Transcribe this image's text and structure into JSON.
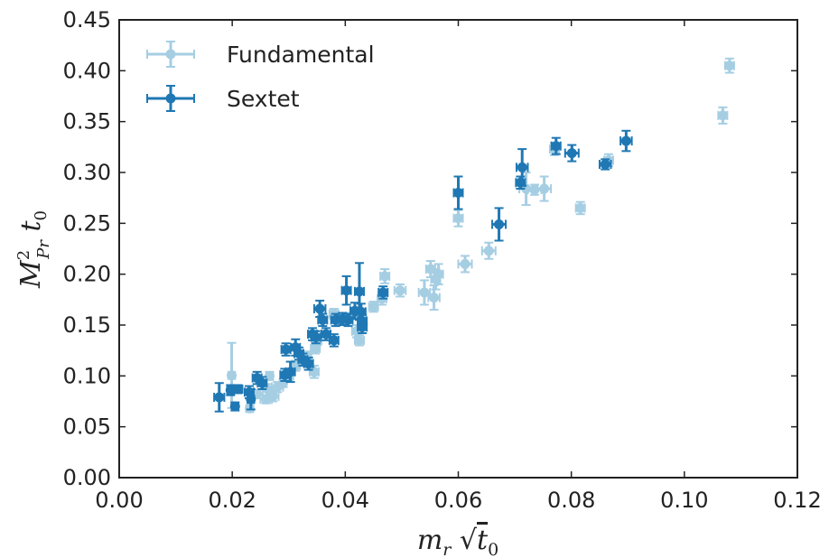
{
  "chart_data": {
    "type": "scatter",
    "title": "",
    "xlabel": "m_r √t_0",
    "ylabel": "M²_Pr t_0",
    "xlim": [
      0.0,
      0.12
    ],
    "ylim": [
      0.0,
      0.45
    ],
    "x_ticks": [
      "0.00",
      "0.02",
      "0.04",
      "0.06",
      "0.08",
      "0.10",
      "0.12"
    ],
    "y_ticks": [
      "0.00",
      "0.05",
      "0.10",
      "0.15",
      "0.20",
      "0.25",
      "0.30",
      "0.35",
      "0.40",
      "0.45"
    ],
    "grid": false,
    "legend_position": "top-left",
    "series": [
      {
        "name": "Fundamental",
        "color": "#a6cee3",
        "points": [
          {
            "x": 0.0199,
            "y": 0.1005,
            "xerr": 0.0006,
            "yerr": 0.032
          },
          {
            "x": 0.0231,
            "y": 0.068,
            "xerr": 0.0006,
            "yerr": 0.003
          },
          {
            "x": 0.0244,
            "y": 0.082,
            "xerr": 0.001,
            "yerr": 0.004
          },
          {
            "x": 0.026,
            "y": 0.077,
            "xerr": 0.001,
            "yerr": 0.004
          },
          {
            "x": 0.0264,
            "y": 0.086,
            "xerr": 0.001,
            "yerr": 0.006
          },
          {
            "x": 0.0272,
            "y": 0.08,
            "xerr": 0.001,
            "yerr": 0.005
          },
          {
            "x": 0.0266,
            "y": 0.1,
            "xerr": 0.0006,
            "yerr": 0.004
          },
          {
            "x": 0.028,
            "y": 0.089,
            "xerr": 0.001,
            "yerr": 0.005
          },
          {
            "x": 0.029,
            "y": 0.093,
            "xerr": 0.0006,
            "yerr": 0.004
          },
          {
            "x": 0.03,
            "y": 0.1,
            "xerr": 0.0008,
            "yerr": 0.005
          },
          {
            "x": 0.0312,
            "y": 0.11,
            "xerr": 0.0008,
            "yerr": 0.005
          },
          {
            "x": 0.0332,
            "y": 0.119,
            "xerr": 0.0008,
            "yerr": 0.005
          },
          {
            "x": 0.0345,
            "y": 0.104,
            "xerr": 0.0008,
            "yerr": 0.006
          },
          {
            "x": 0.0347,
            "y": 0.127,
            "xerr": 0.0008,
            "yerr": 0.005
          },
          {
            "x": 0.035,
            "y": 0.135,
            "xerr": 0.0008,
            "yerr": 0.005
          },
          {
            "x": 0.038,
            "y": 0.161,
            "xerr": 0.0008,
            "yerr": 0.005
          },
          {
            "x": 0.0404,
            "y": 0.157,
            "xerr": 0.0008,
            "yerr": 0.005
          },
          {
            "x": 0.042,
            "y": 0.144,
            "xerr": 0.0008,
            "yerr": 0.006
          },
          {
            "x": 0.0425,
            "y": 0.135,
            "xerr": 0.0008,
            "yerr": 0.005
          },
          {
            "x": 0.045,
            "y": 0.168,
            "xerr": 0.0008,
            "yerr": 0.005
          },
          {
            "x": 0.0465,
            "y": 0.176,
            "xerr": 0.0008,
            "yerr": 0.006
          },
          {
            "x": 0.047,
            "y": 0.198,
            "xerr": 0.0008,
            "yerr": 0.007
          },
          {
            "x": 0.0497,
            "y": 0.184,
            "xerr": 0.001,
            "yerr": 0.006
          },
          {
            "x": 0.054,
            "y": 0.182,
            "xerr": 0.001,
            "yerr": 0.012
          },
          {
            "x": 0.0551,
            "y": 0.205,
            "xerr": 0.0008,
            "yerr": 0.008
          },
          {
            "x": 0.0557,
            "y": 0.177,
            "xerr": 0.001,
            "yerr": 0.012
          },
          {
            "x": 0.056,
            "y": 0.195,
            "xerr": 0.0008,
            "yerr": 0.01
          },
          {
            "x": 0.0565,
            "y": 0.2,
            "xerr": 0.0008,
            "yerr": 0.01
          },
          {
            "x": 0.06,
            "y": 0.255,
            "xerr": 0.0008,
            "yerr": 0.008
          },
          {
            "x": 0.0612,
            "y": 0.21,
            "xerr": 0.0012,
            "yerr": 0.008
          },
          {
            "x": 0.0654,
            "y": 0.223,
            "xerr": 0.0012,
            "yerr": 0.008
          },
          {
            "x": 0.072,
            "y": 0.284,
            "xerr": 0.0012,
            "yerr": 0.016
          },
          {
            "x": 0.0735,
            "y": 0.283,
            "xerr": 0.0012,
            "yerr": 0.005
          },
          {
            "x": 0.0752,
            "y": 0.284,
            "xerr": 0.0012,
            "yerr": 0.012
          },
          {
            "x": 0.077,
            "y": 0.323,
            "xerr": 0.0008,
            "yerr": 0.006
          },
          {
            "x": 0.0816,
            "y": 0.265,
            "xerr": 0.0008,
            "yerr": 0.006
          },
          {
            "x": 0.0866,
            "y": 0.312,
            "xerr": 0.0008,
            "yerr": 0.006
          },
          {
            "x": 0.1068,
            "y": 0.356,
            "xerr": 0.0008,
            "yerr": 0.008
          },
          {
            "x": 0.108,
            "y": 0.405,
            "xerr": 0.0008,
            "yerr": 0.007
          }
        ]
      },
      {
        "name": "Sextet",
        "color": "#1f78b4",
        "points": [
          {
            "x": 0.0177,
            "y": 0.079,
            "xerr": 0.0009,
            "yerr": 0.014
          },
          {
            "x": 0.0197,
            "y": 0.086,
            "xerr": 0.0006,
            "yerr": 0.005
          },
          {
            "x": 0.0205,
            "y": 0.07,
            "xerr": 0.0006,
            "yerr": 0.004
          },
          {
            "x": 0.021,
            "y": 0.087,
            "xerr": 0.0008,
            "yerr": 0.004
          },
          {
            "x": 0.023,
            "y": 0.084,
            "xerr": 0.0008,
            "yerr": 0.006
          },
          {
            "x": 0.0233,
            "y": 0.077,
            "xerr": 0.0006,
            "yerr": 0.01
          },
          {
            "x": 0.0244,
            "y": 0.098,
            "xerr": 0.0008,
            "yerr": 0.006
          },
          {
            "x": 0.0253,
            "y": 0.093,
            "xerr": 0.0008,
            "yerr": 0.006
          },
          {
            "x": 0.0293,
            "y": 0.101,
            "xerr": 0.0008,
            "yerr": 0.006
          },
          {
            "x": 0.0295,
            "y": 0.126,
            "xerr": 0.0008,
            "yerr": 0.006
          },
          {
            "x": 0.0303,
            "y": 0.104,
            "xerr": 0.0008,
            "yerr": 0.01
          },
          {
            "x": 0.0312,
            "y": 0.128,
            "xerr": 0.0008,
            "yerr": 0.008
          },
          {
            "x": 0.0318,
            "y": 0.122,
            "xerr": 0.0008,
            "yerr": 0.006
          },
          {
            "x": 0.0325,
            "y": 0.116,
            "xerr": 0.0008,
            "yerr": 0.006
          },
          {
            "x": 0.0335,
            "y": 0.112,
            "xerr": 0.0008,
            "yerr": 0.006
          },
          {
            "x": 0.0342,
            "y": 0.141,
            "xerr": 0.0008,
            "yerr": 0.006
          },
          {
            "x": 0.0348,
            "y": 0.138,
            "xerr": 0.0008,
            "yerr": 0.006
          },
          {
            "x": 0.0355,
            "y": 0.166,
            "xerr": 0.001,
            "yerr": 0.008
          },
          {
            "x": 0.036,
            "y": 0.155,
            "xerr": 0.0008,
            "yerr": 0.006
          },
          {
            "x": 0.0366,
            "y": 0.141,
            "xerr": 0.0008,
            "yerr": 0.006
          },
          {
            "x": 0.038,
            "y": 0.135,
            "xerr": 0.0008,
            "yerr": 0.006
          },
          {
            "x": 0.0383,
            "y": 0.155,
            "xerr": 0.0008,
            "yerr": 0.006
          },
          {
            "x": 0.0395,
            "y": 0.156,
            "xerr": 0.0008,
            "yerr": 0.006
          },
          {
            "x": 0.0402,
            "y": 0.184,
            "xerr": 0.0008,
            "yerr": 0.014
          },
          {
            "x": 0.0405,
            "y": 0.155,
            "xerr": 0.0008,
            "yerr": 0.006
          },
          {
            "x": 0.0417,
            "y": 0.164,
            "xerr": 0.0008,
            "yerr": 0.008
          },
          {
            "x": 0.0425,
            "y": 0.183,
            "xerr": 0.0008,
            "yerr": 0.028
          },
          {
            "x": 0.0428,
            "y": 0.163,
            "xerr": 0.0008,
            "yerr": 0.008
          },
          {
            "x": 0.043,
            "y": 0.154,
            "xerr": 0.0008,
            "yerr": 0.006
          },
          {
            "x": 0.043,
            "y": 0.148,
            "xerr": 0.0008,
            "yerr": 0.006
          },
          {
            "x": 0.0467,
            "y": 0.182,
            "xerr": 0.0008,
            "yerr": 0.006
          },
          {
            "x": 0.06,
            "y": 0.28,
            "xerr": 0.0008,
            "yerr": 0.016
          },
          {
            "x": 0.0672,
            "y": 0.249,
            "xerr": 0.0012,
            "yerr": 0.016
          },
          {
            "x": 0.071,
            "y": 0.29,
            "xerr": 0.0008,
            "yerr": 0.006
          },
          {
            "x": 0.0713,
            "y": 0.305,
            "xerr": 0.001,
            "yerr": 0.018
          },
          {
            "x": 0.0773,
            "y": 0.326,
            "xerr": 0.0008,
            "yerr": 0.008
          },
          {
            "x": 0.0801,
            "y": 0.319,
            "xerr": 0.0012,
            "yerr": 0.008
          },
          {
            "x": 0.086,
            "y": 0.308,
            "xerr": 0.001,
            "yerr": 0.005
          },
          {
            "x": 0.0897,
            "y": 0.331,
            "xerr": 0.001,
            "yerr": 0.01
          }
        ]
      }
    ]
  }
}
